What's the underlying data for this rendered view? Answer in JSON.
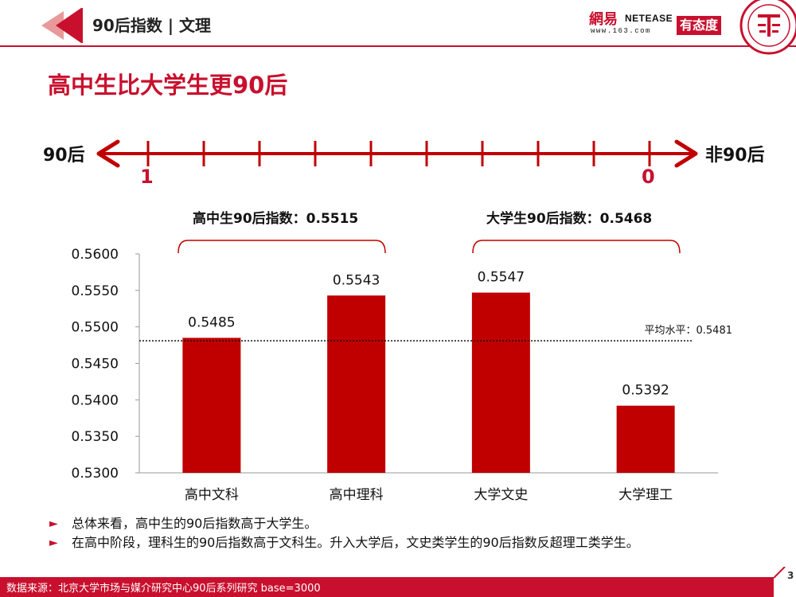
{
  "header": {
    "title": "90后指数 | 文理",
    "logo_cn": "網易",
    "logo_en": "NETEASE",
    "logo_url": "www.163.com",
    "logo_badge": "有态度",
    "accent": "#c8102e"
  },
  "main_title": "高中生比大学生更90后",
  "scale": {
    "left_label": "90后",
    "right_label": "非90后",
    "left_value": "1",
    "right_value": "0"
  },
  "groups": [
    {
      "label": "高中生90后指数：0.5515"
    },
    {
      "label": "大学生90后指数：0.5468"
    }
  ],
  "chart_data": {
    "type": "bar",
    "categories": [
      "高中文科",
      "高中理科",
      "大学文史",
      "大学理工"
    ],
    "values": [
      0.5485,
      0.5543,
      0.5547,
      0.5392
    ],
    "value_labels": [
      "0.5485",
      "0.5543",
      "0.5547",
      "0.5392"
    ],
    "ylim": [
      0.53,
      0.56
    ],
    "yticks": [
      0.53,
      0.535,
      0.54,
      0.545,
      0.55,
      0.555,
      0.56
    ],
    "ytick_labels": [
      "0.5300",
      "0.5350",
      "0.5400",
      "0.5450",
      "0.5500",
      "0.5550",
      "0.5600"
    ],
    "reference_line": {
      "value": 0.5481,
      "label": "平均水平：0.5481"
    },
    "bar_color": "#c00000",
    "grid": false,
    "xlabel": "",
    "ylabel": ""
  },
  "bullets": [
    "总体来看，高中生的90后指数高于大学生。",
    "在高中阶段，理科生的90后指数高于文科生。升入大学后，文史类学生的90后指数反超理工类学生。"
  ],
  "footer": {
    "source": "数据来源：北京大学市场与媒介研究中心90后系列研究 base=3000",
    "page": "3"
  }
}
